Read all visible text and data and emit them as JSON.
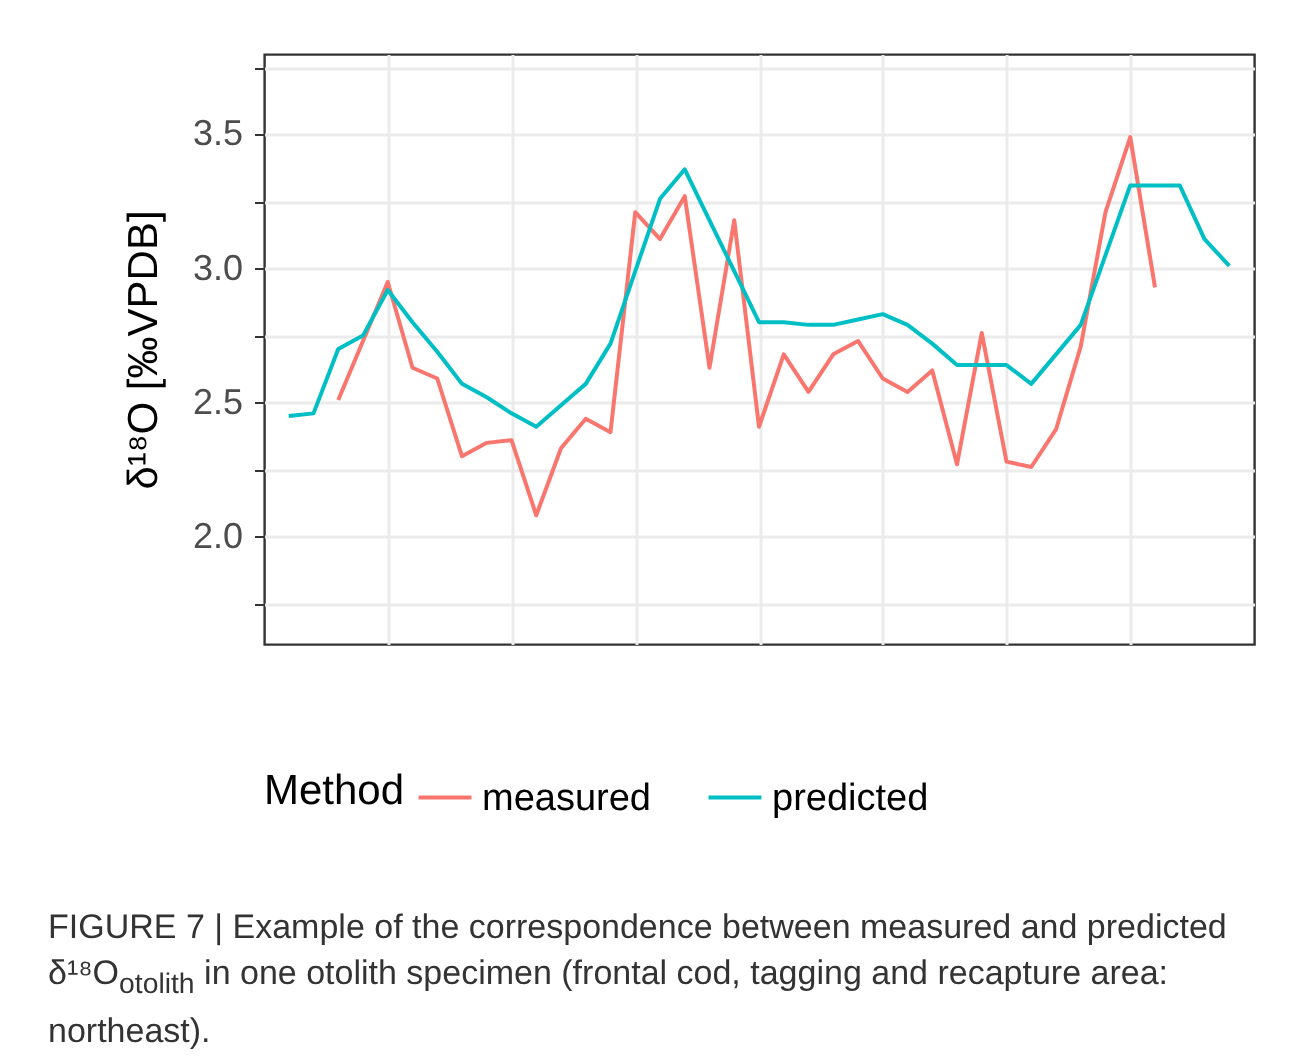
{
  "chart_data": {
    "type": "line",
    "ylabel": "δ¹⁸O [‰VPDB]",
    "legend_title": "Method",
    "annotations": [
      "FIGURE 7 | Example of the correspondence between measured and predicted δ¹⁸O$_{otolith}$ in one otolith specimen (frontal cod, tagging and recapture area: northeast)."
    ],
    "categories": [
      null,
      null,
      null,
      null,
      null,
      null,
      null,
      null,
      null,
      null,
      null,
      null,
      null,
      null,
      null,
      null,
      null,
      null,
      null,
      null,
      null,
      null,
      null,
      null,
      null,
      null,
      null,
      null,
      null,
      null,
      null,
      null,
      null,
      null,
      null,
      null,
      null,
      null,
      null
    ],
    "series": [
      {
        "name": "measured",
        "color": "#f8766d",
        "values": [
          null,
          null,
          2.51,
          2.73,
          2.95,
          2.63,
          2.59,
          2.3,
          2.35,
          2.36,
          2.08,
          2.33,
          2.44,
          2.39,
          3.21,
          3.11,
          3.27,
          2.63,
          3.18,
          2.41,
          2.68,
          2.54,
          2.68,
          2.73,
          2.59,
          2.54,
          2.62,
          2.27,
          2.76,
          2.28,
          2.26,
          2.4,
          2.71,
          3.21,
          3.49,
          2.93,
          null,
          null,
          null
        ]
      },
      {
        "name": "predicted",
        "color": "#00bfc4",
        "values": [
          2.45,
          2.46,
          2.7,
          2.75,
          2.92,
          2.8,
          2.69,
          2.57,
          2.52,
          2.46,
          2.41,
          2.49,
          2.57,
          2.72,
          2.99,
          3.26,
          3.37,
          3.18,
          2.99,
          2.8,
          2.8,
          2.79,
          2.79,
          2.81,
          2.83,
          2.79,
          2.72,
          2.64,
          2.64,
          2.64,
          2.57,
          2.68,
          2.79,
          3.05,
          3.31,
          3.31,
          3.31,
          3.11,
          3.01
        ]
      }
    ],
    "ylim": [
      1.6,
      3.8
    ],
    "yticks": [
      {
        "value": 1.75,
        "label": null
      },
      {
        "value": 2.0,
        "label": "2.0"
      },
      {
        "value": 2.25,
        "label": null
      },
      {
        "value": 2.5,
        "label": "2.5"
      },
      {
        "value": 2.75,
        "label": null
      },
      {
        "value": 3.0,
        "label": "3.0"
      },
      {
        "value": 3.25,
        "label": null
      },
      {
        "value": 3.5,
        "label": "3.5"
      },
      {
        "value": 3.75,
        "label": null
      }
    ],
    "grid": true,
    "legend": "bottom",
    "line_style": "solid",
    "marker": "none"
  }
}
